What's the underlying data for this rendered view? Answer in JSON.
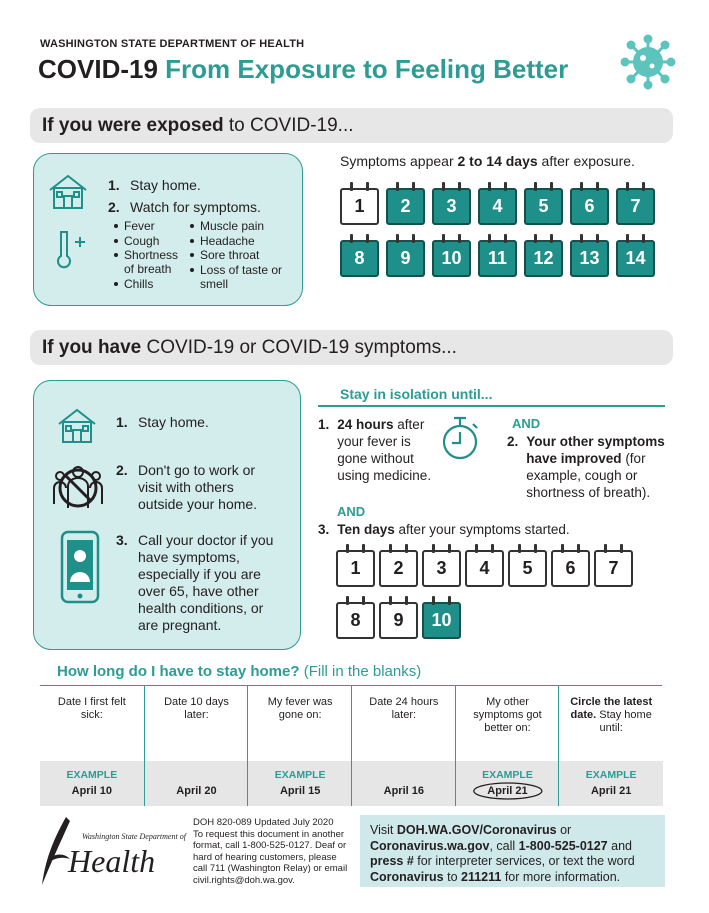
{
  "header": {
    "agency": "WASHINGTON STATE DEPARTMENT OF HEALTH",
    "title": [
      {
        "text": "COVID-19 ",
        "bold": true,
        "teal": false
      },
      {
        "text": "From Exposure to Feeling Better",
        "bold": true,
        "teal": true
      }
    ]
  },
  "exposed": {
    "heading": [
      {
        "text": "If you were exposed",
        "bold": true
      },
      {
        "text": " to COVID-19...",
        "bold": false
      }
    ],
    "steps": [
      {
        "num": "1.",
        "text": "Stay home."
      },
      {
        "num": "2.",
        "text": "Watch for symptoms."
      }
    ],
    "symptoms_left": [
      "Fever",
      "Cough",
      "Shortness of breath",
      "Chills"
    ],
    "symptoms_right": [
      "Muscle pain",
      "Headache",
      "Sore throat",
      "Loss of taste or smell"
    ],
    "appear": [
      {
        "text": "Symptoms appear ",
        "bold": false
      },
      {
        "text": "2 to 14 days",
        "bold": true
      },
      {
        "text": " after exposure.",
        "bold": false
      }
    ],
    "days": [
      1,
      2,
      3,
      4,
      5,
      6,
      7,
      8,
      9,
      10,
      11,
      12,
      13,
      14
    ],
    "filled": [
      2,
      3,
      4,
      5,
      6,
      7,
      8,
      9,
      10,
      11,
      12,
      13,
      14
    ]
  },
  "sick": {
    "heading": [
      {
        "text": "If you have",
        "bold": true
      },
      {
        "text": " COVID-19 or COVID-19 symptoms...",
        "bold": false
      }
    ],
    "steps": [
      {
        "num": "1.",
        "text": "Stay home."
      },
      {
        "num": "2.",
        "text": "Don't go to work or visit with others outside your home."
      },
      {
        "num": "3.",
        "text": "Call your doctor if you have symptoms, especially if you are over 65, have other health conditions, or are pregnant."
      }
    ],
    "isolation_title": "Stay in isolation until...",
    "conditions": [
      {
        "num": "1.",
        "text": [
          {
            "text": "24 hours",
            "bold": true
          },
          {
            "text": " after your fever is gone without using medicine.",
            "bold": false
          }
        ]
      },
      {
        "num": "2.",
        "text": [
          {
            "text": "Your other symptoms have improved",
            "bold": true
          },
          {
            "text": " (for example, cough or shortness of breath).",
            "bold": false
          }
        ]
      },
      {
        "num": "3.",
        "text": [
          {
            "text": "Ten days",
            "bold": true
          },
          {
            "text": " after your symptoms started.",
            "bold": false
          }
        ]
      }
    ],
    "and_labels": [
      "AND",
      "AND"
    ],
    "days": [
      1,
      2,
      3,
      4,
      5,
      6,
      7,
      8,
      9,
      10
    ],
    "filled": [
      10
    ]
  },
  "table": {
    "title": [
      {
        "text": "How long do I have to stay home?",
        "bold": true
      },
      {
        "text": " (Fill in the blanks)",
        "bold": false
      }
    ],
    "columns": [
      {
        "header": [
          {
            "text": "Date I first felt sick:",
            "bold": false
          }
        ],
        "label": "EXAMPLE",
        "example": "April 10"
      },
      {
        "header": [
          {
            "text": "Date 10 days later:",
            "bold": false
          }
        ],
        "example": "April 20"
      },
      {
        "header": [
          {
            "text": "My fever was gone on:",
            "bold": false
          }
        ],
        "label": "EXAMPLE",
        "example": "April 15"
      },
      {
        "header": [
          {
            "text": "Date 24 hours later:",
            "bold": false
          }
        ],
        "example": "April 16"
      },
      {
        "header": [
          {
            "text": "My other symptoms got better on:",
            "bold": false
          }
        ],
        "label": "EXAMPLE",
        "example": "April 21",
        "circled": true
      },
      {
        "header": [
          {
            "text": "Circle the latest date.",
            "bold": true
          },
          {
            "text": " Stay home until:",
            "bold": false
          }
        ],
        "label": "EXAMPLE",
        "example": "April 21"
      }
    ]
  },
  "footer": {
    "logo_small": "Washington State Department of",
    "logo_big": "Health",
    "doc_id": "DOH 820-089  Updated July 2020",
    "access": "To request this document in another format, call 1-800-525-0127. Deaf or hard of hearing customers, please call 711 (Washington Relay) or email civil.rights@doh.wa.gov.",
    "contact": [
      {
        "text": "Visit ",
        "bold": false
      },
      {
        "text": "DOH.WA.GOV/Coronavirus",
        "bold": true
      },
      {
        "text": " or ",
        "bold": false
      },
      {
        "text": "Coronavirus.wa.gov",
        "bold": true
      },
      {
        "text": ", call ",
        "bold": false
      },
      {
        "text": "1-800-525-0127",
        "bold": true
      },
      {
        "text": " and ",
        "bold": false
      },
      {
        "text": "press #",
        "bold": true
      },
      {
        "text": " for interpreter services, or text the word ",
        "bold": false
      },
      {
        "text": "Coronavirus",
        "bold": true
      },
      {
        "text": " to ",
        "bold": false
      },
      {
        "text": "211211",
        "bold": true
      },
      {
        "text": " for more information.",
        "bold": false
      }
    ]
  }
}
